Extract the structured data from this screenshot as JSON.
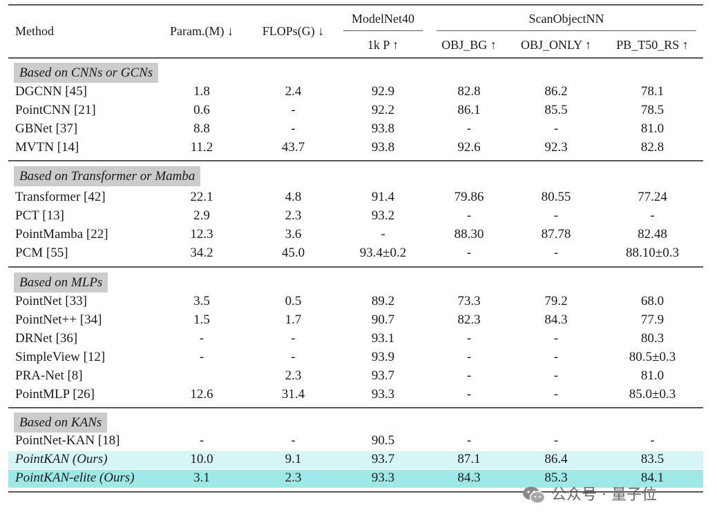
{
  "headers": {
    "method": "Method",
    "param": "Param.(M) ↓",
    "flops": "FLOPs(G) ↓",
    "modelnet": "ModelNet40",
    "modelnet_sub": "1k P ↑",
    "scan": "ScanObjectNN",
    "obj_bg": "OBJ_BG ↑",
    "obj_only": "OBJ_ONLY ↑",
    "pb": "PB_T50_RS ↑"
  },
  "sections": [
    {
      "title": "Based on CNNs or GCNs",
      "rows": [
        {
          "method": "DGCNN [45]",
          "param": "1.8",
          "flops": "2.4",
          "mn": "92.9",
          "bg": "82.8",
          "only": "86.2",
          "pb": "78.1"
        },
        {
          "method": "PointCNN [21]",
          "param": "0.6",
          "flops": "-",
          "mn": "92.2",
          "bg": "86.1",
          "only": "85.5",
          "pb": "78.5"
        },
        {
          "method": "GBNet [37]",
          "param": "8.8",
          "flops": "-",
          "mn": "93.8",
          "bg": "-",
          "only": "-",
          "pb": "81.0"
        },
        {
          "method": "MVTN [14]",
          "param": "11.2",
          "flops": "43.7",
          "mn": "93.8",
          "bg": "92.6",
          "only": "92.3",
          "pb": "82.8"
        }
      ]
    },
    {
      "title": "Based on Transformer or Mamba",
      "rows": [
        {
          "method": "Transformer [42]",
          "param": "22.1",
          "flops": "4.8",
          "mn": "91.4",
          "bg": "79.86",
          "only": "80.55",
          "pb": "77.24"
        },
        {
          "method": "PCT [13]",
          "param": "2.9",
          "flops": "2.3",
          "mn": "93.2",
          "bg": "-",
          "only": "-",
          "pb": "-"
        },
        {
          "method": "PointMamba [22]",
          "param": "12.3",
          "flops": "3.6",
          "mn": "-",
          "bg": "88.30",
          "only": "87.78",
          "pb": "82.48"
        },
        {
          "method": "PCM [55]",
          "param": "34.2",
          "flops": "45.0",
          "mn": "93.4±0.2",
          "bg": "-",
          "only": "-",
          "pb": "88.10±0.3"
        }
      ]
    },
    {
      "title": "Based on MLPs",
      "rows": [
        {
          "method": "PointNet [33]",
          "param": "3.5",
          "flops": "0.5",
          "mn": "89.2",
          "bg": "73.3",
          "only": "79.2",
          "pb": "68.0"
        },
        {
          "method": "PointNet++ [34]",
          "param": "1.5",
          "flops": "1.7",
          "mn": "90.7",
          "bg": "82.3",
          "only": "84.3",
          "pb": "77.9"
        },
        {
          "method": "DRNet [36]",
          "param": "-",
          "flops": "-",
          "mn": "93.1",
          "bg": "-",
          "only": "-",
          "pb": "80.3"
        },
        {
          "method": "SimpleView [12]",
          "param": "-",
          "flops": "-",
          "mn": "93.9",
          "bg": "-",
          "only": "-",
          "pb": "80.5±0.3"
        },
        {
          "method": "PRA-Net [8]",
          "param": "",
          "flops": "2.3",
          "mn": "93.7",
          "bg": "-",
          "only": "-",
          "pb": "81.0"
        },
        {
          "method": "PointMLP [26]",
          "param": "12.6",
          "flops": "31.4",
          "mn": "93.3",
          "bg": "-",
          "only": "-",
          "pb": "85.0±0.3"
        }
      ]
    },
    {
      "title": "Based on KANs",
      "rows": [
        {
          "method": "PointNet-KAN [18]",
          "param": "-",
          "flops": "-",
          "mn": "90.5",
          "bg": "-",
          "only": "-",
          "pb": "-"
        },
        {
          "method": "PointKAN (Ours)",
          "param": "10.0",
          "flops": "9.1",
          "mn": "93.7",
          "bg": "87.1",
          "only": "86.4",
          "pb": "83.5"
        },
        {
          "method": "PointKAN-elite (Ours)",
          "param": "3.1",
          "flops": "2.3",
          "mn": "93.3",
          "bg": "84.3",
          "only": "85.3",
          "pb": "84.1"
        }
      ]
    }
  ],
  "colors": {
    "highlight_ours": "#d6f5f5",
    "highlight_elite": "#9ee8e8",
    "section_bg": "#cccccc"
  },
  "watermark": {
    "icon": "wechat-icon",
    "text": "公众号 · 量子位"
  }
}
